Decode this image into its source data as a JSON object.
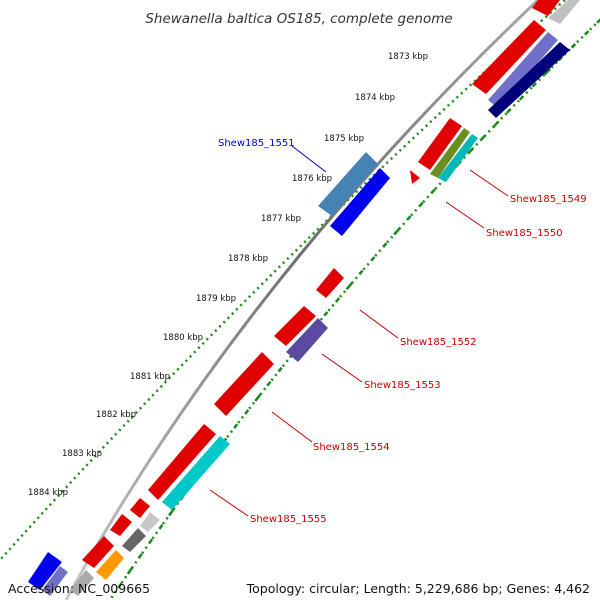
{
  "title": "Shewanella baltica OS185, complete genome",
  "accession": "Accession: NC_009665",
  "topology": "Topology: circular; Length: 5,229,686 bp; Genes: 4,462",
  "colors": {
    "backbone": "#8c8c8c",
    "ticks": "#1a8a1a",
    "label_blue": "#0000cc",
    "label_red": "#cc0000"
  },
  "ruler": [
    "1873 kbp",
    "1874 kbp",
    "1875 kbp",
    "1876 kbp",
    "1877 kbp",
    "1878 kbp",
    "1879 kbp",
    "1880 kbp",
    "1881 kbp",
    "1882 kbp",
    "1883 kbp",
    "1884 kbp"
  ],
  "labels": [
    "Shew185_1551",
    "Shew185_1549",
    "Shew185_1550",
    "Shew185_1552",
    "Shew185_1553",
    "Shew185_1554",
    "Shew185_1555"
  ]
}
